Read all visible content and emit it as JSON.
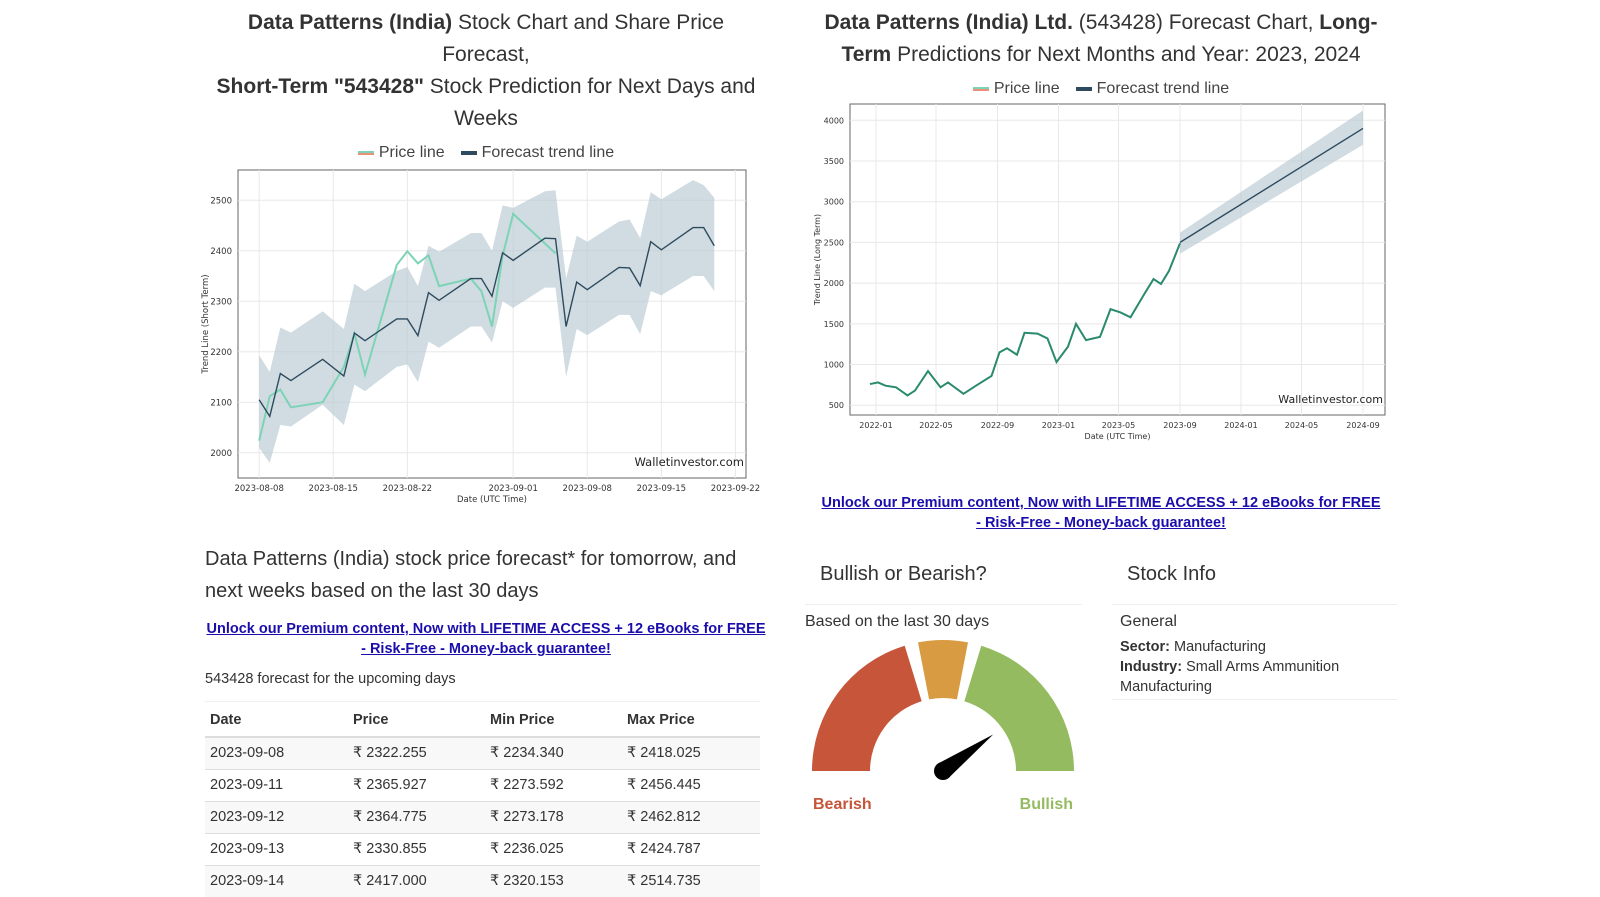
{
  "short_chart": {
    "title_bold1": "Data Patterns (India)",
    "title_1": " Stock Chart and Share Price Forecast,",
    "title_bold2": "Short-Term \"543428\"",
    "title_2": " Stock Prediction for Next Days and Weeks",
    "legend": [
      "Price line",
      "Forecast trend line"
    ],
    "chart_data": {
      "type": "line",
      "ylabel": "Trend Line (Short Term)",
      "xlabel": "Date (UTC Time)",
      "watermark": "Walletinvestor.com",
      "ylim": [
        1950,
        2560
      ],
      "xlim": [
        "2023-08-06",
        "2023-09-23"
      ],
      "yticks": [
        2000,
        2100,
        2200,
        2300,
        2400,
        2500
      ],
      "xticks": [
        "2023-08-08",
        "2023-08-15",
        "2023-08-22",
        "2023-09-01",
        "2023-09-08",
        "2023-09-15",
        "2023-09-22"
      ],
      "grid": true,
      "series": [
        {
          "name": "Price line",
          "color": "#7dd3b5",
          "x": [
            "2023-08-08",
            "2023-08-09",
            "2023-08-10",
            "2023-08-11",
            "2023-08-14",
            "2023-08-16",
            "2023-08-17",
            "2023-08-18",
            "2023-08-21",
            "2023-08-22",
            "2023-08-23",
            "2023-08-24",
            "2023-08-25",
            "2023-08-28",
            "2023-08-29",
            "2023-08-30",
            "2023-08-31",
            "2023-09-01",
            "2023-09-05"
          ],
          "y": [
            2024,
            2112,
            2125,
            2090,
            2100,
            2170,
            2236,
            2155,
            2372,
            2399,
            2375,
            2391,
            2330,
            2345,
            2320,
            2250,
            2390,
            2473,
            2395
          ]
        },
        {
          "name": "Forecast trend line",
          "color": "#2e4a5e",
          "x": [
            "2023-08-08",
            "2023-08-09",
            "2023-08-10",
            "2023-08-11",
            "2023-08-14",
            "2023-08-16",
            "2023-08-17",
            "2023-08-18",
            "2023-08-21",
            "2023-08-22",
            "2023-08-23",
            "2023-08-24",
            "2023-08-25",
            "2023-08-28",
            "2023-08-29",
            "2023-08-30",
            "2023-08-31",
            "2023-09-01",
            "2023-09-04",
            "2023-09-05",
            "2023-09-06",
            "2023-09-07",
            "2023-09-08",
            "2023-09-11",
            "2023-09-12",
            "2023-09-13",
            "2023-09-14",
            "2023-09-15",
            "2023-09-18",
            "2023-09-19",
            "2023-09-20"
          ],
          "y": [
            2105,
            2072,
            2157,
            2143,
            2185,
            2152,
            2237,
            2222,
            2265,
            2265,
            2232,
            2317,
            2302,
            2345,
            2345,
            2310,
            2396,
            2381,
            2425,
            2424,
            2250,
            2338,
            2323,
            2367,
            2366,
            2331,
            2418,
            2402,
            2446,
            2446,
            2410
          ],
          "lower": [
            2010,
            1980,
            2055,
            2052,
            2095,
            2055,
            2135,
            2122,
            2170,
            2175,
            2140,
            2220,
            2208,
            2250,
            2250,
            2218,
            2300,
            2287,
            2327,
            2327,
            2150,
            2245,
            2233,
            2273,
            2273,
            2235,
            2320,
            2312,
            2350,
            2350,
            2320
          ],
          "upper": [
            2193,
            2160,
            2248,
            2238,
            2280,
            2245,
            2335,
            2320,
            2360,
            2368,
            2330,
            2410,
            2398,
            2435,
            2435,
            2400,
            2490,
            2485,
            2518,
            2520,
            2345,
            2430,
            2418,
            2458,
            2462,
            2425,
            2516,
            2502,
            2540,
            2530,
            2505
          ]
        }
      ]
    }
  },
  "long_chart": {
    "title_bold1": "Data Patterns (India) Ltd.",
    "title_1": " (543428) Forecast Chart, ",
    "title_bold2": "Long-Term",
    "title_2": " Predictions for Next Months and Year: 2023, 2024",
    "legend": [
      "Price line",
      "Forecast trend line"
    ],
    "chart_data": {
      "type": "line",
      "ylabel": "Trend Line (Long Term)",
      "xlabel": "Date (UTC Time)",
      "watermark": "Walletinvestor.com",
      "ylim": [
        380,
        4200
      ],
      "xlim": [
        "2021-11-10",
        "2024-10-15"
      ],
      "yticks": [
        500,
        1000,
        1500,
        2000,
        2500,
        3000,
        3500,
        4000
      ],
      "xticks": [
        "2022-01",
        "2022-05",
        "2022-09",
        "2023-01",
        "2023-05",
        "2023-09",
        "2024-01",
        "2024-05",
        "2024-09"
      ],
      "grid": true,
      "series": [
        {
          "name": "Price line",
          "color": "#2a8a6e",
          "x": [
            "2021-12-20",
            "2022-01-05",
            "2022-01-20",
            "2022-02-10",
            "2022-03-05",
            "2022-03-20",
            "2022-04-15",
            "2022-05-10",
            "2022-05-25",
            "2022-06-25",
            "2022-07-20",
            "2022-08-20",
            "2022-09-05",
            "2022-09-20",
            "2022-10-10",
            "2022-10-25",
            "2022-11-20",
            "2022-12-10",
            "2022-12-28",
            "2023-01-20",
            "2023-02-05",
            "2023-02-25",
            "2023-03-25",
            "2023-04-15",
            "2023-05-05",
            "2023-05-25",
            "2023-06-20",
            "2023-07-10",
            "2023-07-25",
            "2023-08-10",
            "2023-08-25",
            "2023-09-01"
          ],
          "y": [
            760,
            780,
            740,
            720,
            620,
            680,
            920,
            720,
            780,
            640,
            740,
            860,
            1150,
            1200,
            1120,
            1390,
            1380,
            1320,
            1030,
            1220,
            1500,
            1300,
            1340,
            1680,
            1640,
            1580,
            1850,
            2050,
            1990,
            2150,
            2380,
            2490
          ]
        },
        {
          "name": "Forecast trend line",
          "color": "#2e4a5e",
          "x": [
            "2023-09-01",
            "2024-09-01"
          ],
          "y": [
            2500,
            3900
          ],
          "lower": [
            2360,
            3700
          ],
          "upper": [
            2620,
            4120
          ]
        }
      ]
    }
  },
  "forecast_section": {
    "heading": "Data Patterns (India) stock price forecast* for tomorrow, and next weeks based on the last 30 days",
    "promo": "Unlock our Premium content, Now with LIFETIME ACCESS + 12 eBooks for FREE - Risk-Free - Money-back guarantee!",
    "caption": "543428 forecast for the upcoming days",
    "columns": [
      "Date",
      "Price",
      "Min Price",
      "Max Price"
    ],
    "rows": [
      [
        "2023-09-08",
        "₹ 2322.255",
        "₹ 2234.340",
        "₹ 2418.025"
      ],
      [
        "2023-09-11",
        "₹ 2365.927",
        "₹ 2273.592",
        "₹ 2456.445"
      ],
      [
        "2023-09-12",
        "₹ 2364.775",
        "₹ 2273.178",
        "₹ 2462.812"
      ],
      [
        "2023-09-13",
        "₹ 2330.855",
        "₹ 2236.025",
        "₹ 2424.787"
      ],
      [
        "2023-09-14",
        "₹ 2417.000",
        "₹ 2320.153",
        "₹ 2514.735"
      ]
    ]
  },
  "right_promo": "Unlock our Premium content, Now with LIFETIME ACCESS + 12 eBooks for FREE - Risk-Free - Money-back guarantee!",
  "sentiment": {
    "heading": "Bullish or Bearish?",
    "caption": "Based on the last 30 days",
    "bearish": "Bearish",
    "bullish": "Bullish",
    "gauge_value": 0.8,
    "colors": {
      "bearish": "#c6553a",
      "neutral": "#d89b42",
      "bullish": "#94bb5f"
    }
  },
  "stock_info": {
    "heading": "Stock Info",
    "group": "General",
    "sector_label": "Sector:",
    "sector": "Manufacturing",
    "industry_label": "Industry:",
    "industry": "Small Arms Ammunition Manufacturing"
  }
}
